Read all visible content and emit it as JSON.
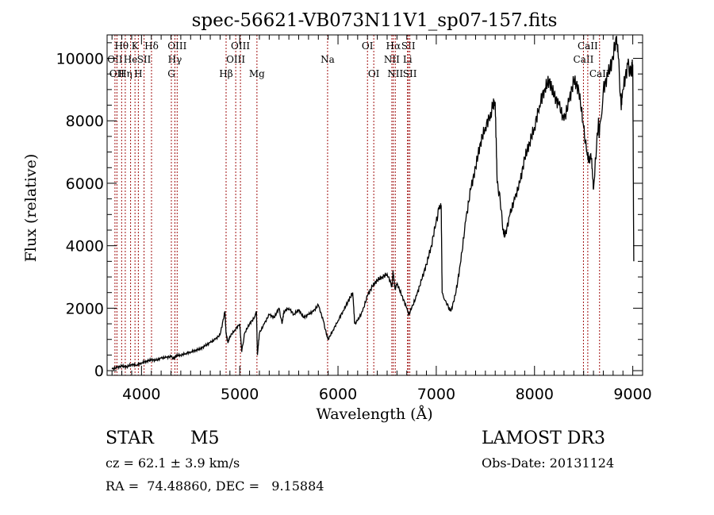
{
  "chart_data": {
    "type": "line",
    "title": "spec-56621-VB073N11V1_sp07-157.fits",
    "xlabel": "Wavelength (Å)",
    "ylabel": "Flux (relative)",
    "xlim": [
      3650,
      9100
    ],
    "ylim": [
      -150,
      10750
    ],
    "xticks": [
      4000,
      5000,
      6000,
      7000,
      8000,
      9000
    ],
    "xtick_labels": [
      "4000",
      "5000",
      "6000",
      "7000",
      "8000",
      "9000"
    ],
    "yticks": [
      0,
      2000,
      4000,
      6000,
      8000,
      10000
    ],
    "ytick_labels": [
      "0",
      "2000",
      "4000",
      "6000",
      "8000",
      "10000"
    ],
    "grid": false,
    "line_color": "#000000",
    "marker_color": "#a01010",
    "series": [
      {
        "name": "spectrum",
        "x": [
          3700,
          3750,
          3800,
          3850,
          3900,
          3950,
          4000,
          4050,
          4100,
          4150,
          4200,
          4250,
          4300,
          4330,
          4350,
          4400,
          4450,
          4500,
          4550,
          4600,
          4650,
          4700,
          4750,
          4800,
          4850,
          4860,
          4880,
          4900,
          4950,
          5000,
          5020,
          5050,
          5100,
          5150,
          5170,
          5180,
          5200,
          5250,
          5300,
          5350,
          5400,
          5430,
          5450,
          5500,
          5550,
          5600,
          5650,
          5700,
          5750,
          5800,
          5850,
          5880,
          5900,
          5950,
          6000,
          6050,
          6100,
          6150,
          6170,
          6200,
          6250,
          6300,
          6350,
          6400,
          6450,
          6500,
          6550,
          6560,
          6580,
          6600,
          6650,
          6700,
          6720,
          6750,
          6800,
          6850,
          6900,
          6950,
          7000,
          7030,
          7050,
          7060,
          7100,
          7130,
          7150,
          7200,
          7250,
          7300,
          7350,
          7400,
          7450,
          7500,
          7550,
          7580,
          7600,
          7620,
          7650,
          7680,
          7700,
          7750,
          7800,
          7850,
          7900,
          7950,
          8000,
          8050,
          8100,
          8150,
          8200,
          8250,
          8300,
          8350,
          8400,
          8450,
          8500,
          8530,
          8550,
          8580,
          8600,
          8650,
          8660,
          8700,
          8750,
          8800,
          8830,
          8850,
          8880,
          8900,
          8950,
          8980,
          9000,
          9010
        ],
        "y": [
          50,
          100,
          150,
          120,
          200,
          180,
          250,
          300,
          350,
          330,
          400,
          420,
          450,
          380,
          480,
          500,
          550,
          600,
          650,
          700,
          800,
          900,
          1000,
          1150,
          1900,
          1200,
          900,
          1100,
          1300,
          1500,
          600,
          1200,
          1500,
          1700,
          1900,
          500,
          1200,
          1500,
          1800,
          1700,
          2000,
          1500,
          1900,
          2000,
          1800,
          1950,
          1700,
          1800,
          1900,
          2100,
          1600,
          1200,
          1000,
          1300,
          1600,
          1900,
          2200,
          2500,
          1500,
          1600,
          1900,
          2400,
          2700,
          2900,
          3000,
          3100,
          2700,
          3200,
          2600,
          2800,
          2400,
          2000,
          1800,
          2000,
          2400,
          2900,
          3400,
          4000,
          4800,
          5200,
          5300,
          2500,
          2200,
          2000,
          1900,
          2500,
          3500,
          4800,
          5800,
          6500,
          7300,
          7800,
          8200,
          8500,
          8600,
          6000,
          5500,
          4500,
          4300,
          5000,
          5500,
          6000,
          6800,
          7300,
          7800,
          8500,
          9000,
          9300,
          8800,
          8500,
          8000,
          8600,
          9300,
          9000,
          7800,
          7000,
          6800,
          6800,
          5800,
          8000,
          7500,
          9000,
          9500,
          10000,
          10700,
          10200,
          8500,
          9000,
          9800,
          9500,
          9800,
          3500
        ]
      }
    ],
    "line_markers": [
      {
        "wl": 3730,
        "label": "OII",
        "row": 2
      },
      {
        "wl": 3750,
        "label": "OII",
        "row": 3
      },
      {
        "wl": 3798,
        "label": "Hθ",
        "row": 1
      },
      {
        "wl": 3835,
        "label": "Hη",
        "row": 3
      },
      {
        "wl": 3889,
        "label": "He",
        "row": 2
      },
      {
        "wl": 3934,
        "label": "K",
        "row": 1
      },
      {
        "wl": 3968,
        "label": "H",
        "row": 3
      },
      {
        "wl": 4026,
        "label": "SII",
        "row": 2
      },
      {
        "wl": 4102,
        "label": "Hδ",
        "row": 1
      },
      {
        "wl": 4304,
        "label": "G",
        "row": 3
      },
      {
        "wl": 4340,
        "label": "Hγ",
        "row": 2
      },
      {
        "wl": 4363,
        "label": "OIII",
        "row": 1
      },
      {
        "wl": 4861,
        "label": "Hβ",
        "row": 3
      },
      {
        "wl": 4959,
        "label": "OIII",
        "row": 2
      },
      {
        "wl": 5007,
        "label": "OIII",
        "row": 1
      },
      {
        "wl": 5175,
        "label": "Mg",
        "row": 3
      },
      {
        "wl": 5894,
        "label": "Na",
        "row": 2
      },
      {
        "wl": 6300,
        "label": "OI",
        "row": 1
      },
      {
        "wl": 6364,
        "label": "OI",
        "row": 3
      },
      {
        "wl": 6548,
        "label": "NII",
        "row": 2
      },
      {
        "wl": 6563,
        "label": "Hα",
        "row": 1
      },
      {
        "wl": 6583,
        "label": "NII",
        "row": 3
      },
      {
        "wl": 6708,
        "label": "Li",
        "row": 2
      },
      {
        "wl": 6716,
        "label": "SII",
        "row": 1
      },
      {
        "wl": 6731,
        "label": "SII",
        "row": 3
      },
      {
        "wl": 8498,
        "label": "CaII",
        "row": 2
      },
      {
        "wl": 8542,
        "label": "CaII",
        "row": 1
      },
      {
        "wl": 8662,
        "label": "CaII",
        "row": 3
      }
    ]
  },
  "info": {
    "class_label": "STAR",
    "subclass_label": "M5",
    "velocity": "cz = 62.1 ± 3.9 km/s",
    "coords": "RA =  74.48860, DEC =   9.15884",
    "survey": "LAMOST DR3",
    "obs_date": "Obs-Date: 20131124"
  }
}
